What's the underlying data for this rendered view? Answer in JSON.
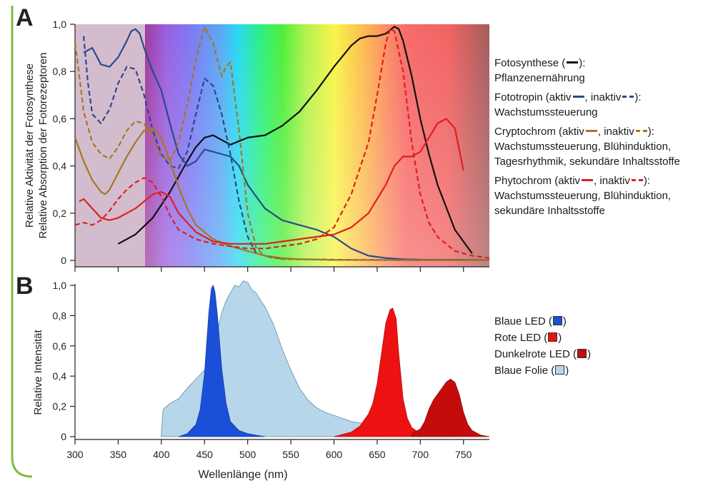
{
  "panels": {
    "A": {
      "letter": "A"
    },
    "B": {
      "letter": "B"
    }
  },
  "colors": {
    "frame_green": "#7dbd3a",
    "photosynthesis": "#111111",
    "phototropin": "#2a4a8a",
    "cryptochrome": "#a4781e",
    "phytochrome": "#e0201c",
    "blue_led": "#1a4fd8",
    "red_led": "#ee1111",
    "darkred_led": "#c40c0c",
    "blue_foil": "#b8d6ea"
  },
  "legend_a": [
    {
      "name": "Fotosynthese",
      "prefix": "Fotosynthese (",
      "suffix": "):",
      "desc": [
        "Pflanzenernährung"
      ],
      "color_key": "photosynthesis"
    },
    {
      "name": "Fototropin",
      "prefix": "Fototropin (aktiv",
      "mid": ", inaktiv",
      "suffix": "):",
      "desc": [
        "Wachstumssteuerung"
      ],
      "color_key": "phototropin"
    },
    {
      "name": "Cryptochrom",
      "prefix": "Cryptochrom (aktiv",
      "mid": ", inaktiv",
      "suffix": "):",
      "desc": [
        "Wachstumssteuerung, Blühinduktion,",
        "Tagesrhythmik, sekundäre Inhaltsstoffe"
      ],
      "color_key": "cryptochrome"
    },
    {
      "name": "Phytochrom",
      "prefix": "Phytochrom (aktiv",
      "mid": ", inaktiv",
      "suffix": "):",
      "desc": [
        "Wachstumssteuerung, Blühinduktion,",
        "sekundäre Inhaltsstoffe"
      ],
      "color_key": "phytochrome"
    }
  ],
  "legend_b": [
    {
      "label": "Blaue LED (",
      "suffix": ")",
      "color_key": "blue_led"
    },
    {
      "label": "Rote LED (",
      "suffix": ")",
      "color_key": "red_led"
    },
    {
      "label": "Dunkelrote LED (",
      "suffix": ")",
      "color_key": "darkred_led"
    },
    {
      "label": "Blaue Folie (",
      "suffix": ")",
      "color_key": "blue_foil"
    }
  ],
  "chart_data": [
    {
      "type": "line",
      "panel": "A",
      "ylabel": [
        "Relative Aktivität der Fotosynthese",
        "Relative Absorption der Fotorezeptoren"
      ],
      "xlim": [
        300,
        780
      ],
      "ylim": [
        0,
        1.0
      ],
      "yticks": [
        "0",
        "0,2",
        "0,4",
        "0,6",
        "0,8",
        "1,0"
      ],
      "ytick_values": [
        0,
        0.2,
        0.4,
        0.6,
        0.8,
        1.0
      ],
      "xticks": [
        300,
        350,
        400,
        450,
        500,
        550,
        600,
        650,
        700,
        750
      ],
      "series": [
        {
          "name": "Fotosynthese",
          "color_key": "photosynthesis",
          "dash": false,
          "x": [
            350,
            370,
            390,
            410,
            430,
            440,
            450,
            460,
            470,
            480,
            500,
            520,
            540,
            560,
            580,
            600,
            620,
            630,
            640,
            650,
            660,
            670,
            675,
            680,
            690,
            700,
            710,
            720,
            740,
            760
          ],
          "y": [
            0.07,
            0.11,
            0.18,
            0.29,
            0.42,
            0.48,
            0.52,
            0.53,
            0.51,
            0.49,
            0.52,
            0.53,
            0.57,
            0.63,
            0.72,
            0.82,
            0.91,
            0.94,
            0.95,
            0.95,
            0.96,
            0.99,
            0.98,
            0.93,
            0.78,
            0.6,
            0.45,
            0.32,
            0.13,
            0.03
          ]
        },
        {
          "name": "Fototropin (aktiv)",
          "color_key": "phototropin",
          "dash": false,
          "x": [
            310,
            320,
            330,
            340,
            350,
            360,
            365,
            370,
            375,
            380,
            390,
            400,
            410,
            420,
            430,
            440,
            450,
            460,
            470,
            480,
            490,
            500,
            520,
            540,
            560,
            580,
            600,
            620,
            640,
            660,
            680,
            700,
            780
          ],
          "y": [
            0.88,
            0.9,
            0.83,
            0.82,
            0.86,
            0.93,
            0.97,
            0.98,
            0.96,
            0.9,
            0.8,
            0.72,
            0.58,
            0.45,
            0.4,
            0.42,
            0.47,
            0.46,
            0.45,
            0.44,
            0.4,
            0.32,
            0.22,
            0.17,
            0.15,
            0.13,
            0.1,
            0.05,
            0.02,
            0.01,
            0.005,
            0.003,
            0.002
          ]
        },
        {
          "name": "Fototropin (inaktiv)",
          "color_key": "phototropin",
          "dash": true,
          "x": [
            310,
            315,
            320,
            330,
            340,
            350,
            360,
            370,
            380,
            390,
            400,
            410,
            420,
            430,
            440,
            450,
            460,
            470,
            480,
            490,
            500,
            510,
            530,
            560,
            600,
            650,
            700,
            780
          ],
          "y": [
            0.95,
            0.75,
            0.62,
            0.58,
            0.64,
            0.75,
            0.82,
            0.81,
            0.7,
            0.55,
            0.45,
            0.4,
            0.39,
            0.46,
            0.62,
            0.77,
            0.74,
            0.62,
            0.45,
            0.25,
            0.1,
            0.03,
            0.01,
            0.005,
            0.003,
            0.002,
            0.001,
            0.001
          ]
        },
        {
          "name": "Cryptochrom (aktiv)",
          "color_key": "cryptochrome",
          "dash": false,
          "x": [
            300,
            310,
            320,
            330,
            335,
            340,
            350,
            360,
            370,
            380,
            390,
            400,
            410,
            420,
            430,
            440,
            460,
            480,
            500,
            520,
            540,
            560,
            600,
            700,
            780
          ],
          "y": [
            0.52,
            0.42,
            0.34,
            0.29,
            0.28,
            0.3,
            0.37,
            0.44,
            0.5,
            0.55,
            0.56,
            0.52,
            0.42,
            0.31,
            0.22,
            0.15,
            0.09,
            0.06,
            0.04,
            0.02,
            0.01,
            0.005,
            0.002,
            0.001,
            0.001
          ]
        },
        {
          "name": "Cryptochrom (inaktiv)",
          "color_key": "cryptochrome",
          "dash": true,
          "x": [
            300,
            303,
            310,
            320,
            330,
            340,
            350,
            360,
            370,
            380,
            390,
            400,
            410,
            420,
            430,
            440,
            450,
            460,
            470,
            475,
            480,
            490,
            500,
            510,
            520,
            540,
            600,
            700,
            780
          ],
          "y": [
            0.92,
            0.84,
            0.63,
            0.5,
            0.45,
            0.43,
            0.48,
            0.55,
            0.59,
            0.58,
            0.52,
            0.44,
            0.42,
            0.5,
            0.66,
            0.85,
            0.99,
            0.92,
            0.78,
            0.82,
            0.84,
            0.55,
            0.2,
            0.05,
            0.02,
            0.005,
            0.002,
            0.001,
            0.001
          ]
        },
        {
          "name": "Phytochrom (aktiv)",
          "color_key": "phytochrome",
          "dash": false,
          "x": [
            305,
            310,
            320,
            330,
            340,
            350,
            360,
            370,
            380,
            390,
            400,
            410,
            420,
            440,
            460,
            480,
            500,
            520,
            540,
            560,
            580,
            600,
            620,
            640,
            660,
            670,
            680,
            690,
            700,
            710,
            720,
            730,
            740,
            750
          ],
          "y": [
            0.25,
            0.26,
            0.22,
            0.18,
            0.17,
            0.18,
            0.2,
            0.22,
            0.25,
            0.28,
            0.29,
            0.27,
            0.2,
            0.12,
            0.08,
            0.07,
            0.07,
            0.07,
            0.08,
            0.09,
            0.1,
            0.11,
            0.14,
            0.2,
            0.32,
            0.4,
            0.44,
            0.44,
            0.46,
            0.52,
            0.58,
            0.6,
            0.56,
            0.38
          ]
        },
        {
          "name": "Phytochrom (inaktiv)",
          "color_key": "phytochrome",
          "dash": true,
          "x": [
            300,
            310,
            320,
            330,
            340,
            350,
            360,
            370,
            380,
            390,
            400,
            410,
            420,
            440,
            460,
            480,
            500,
            520,
            540,
            560,
            580,
            600,
            620,
            640,
            650,
            660,
            665,
            670,
            680,
            690,
            700,
            710,
            720,
            740,
            760,
            780
          ],
          "y": [
            0.15,
            0.16,
            0.15,
            0.17,
            0.21,
            0.26,
            0.3,
            0.33,
            0.35,
            0.33,
            0.27,
            0.19,
            0.13,
            0.09,
            0.07,
            0.06,
            0.05,
            0.05,
            0.06,
            0.07,
            0.09,
            0.14,
            0.28,
            0.5,
            0.7,
            0.92,
            0.98,
            0.97,
            0.8,
            0.5,
            0.28,
            0.16,
            0.1,
            0.04,
            0.02,
            0.01
          ]
        }
      ]
    },
    {
      "type": "area",
      "panel": "B",
      "xlabel": "Wellenlänge (nm)",
      "ylabel": "Relative Intensität",
      "xlim": [
        300,
        780
      ],
      "ylim": [
        0,
        1.0
      ],
      "yticks": [
        "0",
        "0,2",
        "0,4",
        "0,6",
        "0,8",
        "1,0"
      ],
      "ytick_values": [
        0,
        0.2,
        0.4,
        0.6,
        0.8,
        1.0
      ],
      "xticks": [
        300,
        350,
        400,
        450,
        500,
        550,
        600,
        650,
        700,
        750
      ],
      "series": [
        {
          "name": "Blaue Folie",
          "color_key": "blue_foil",
          "x": [
            400,
            402,
            410,
            420,
            430,
            440,
            450,
            460,
            465,
            470,
            475,
            480,
            485,
            490,
            495,
            500,
            505,
            510,
            515,
            520,
            530,
            540,
            550,
            560,
            570,
            580,
            590,
            600,
            610,
            620,
            630,
            640,
            660,
            680,
            700,
            720,
            740
          ],
          "y": [
            0.02,
            0.18,
            0.22,
            0.25,
            0.32,
            0.38,
            0.44,
            0.54,
            0.7,
            0.82,
            0.9,
            0.95,
            1.0,
            0.99,
            1.03,
            1.02,
            0.97,
            0.95,
            0.9,
            0.86,
            0.74,
            0.58,
            0.44,
            0.32,
            0.24,
            0.19,
            0.16,
            0.14,
            0.12,
            0.1,
            0.09,
            0.08,
            0.06,
            0.05,
            0.03,
            0.01,
            0.0
          ]
        },
        {
          "name": "Blaue LED",
          "color_key": "blue_led",
          "x": [
            420,
            430,
            440,
            445,
            450,
            455,
            458,
            460,
            462,
            465,
            470,
            475,
            480,
            490,
            500,
            510,
            520
          ],
          "y": [
            0.0,
            0.02,
            0.08,
            0.18,
            0.42,
            0.82,
            0.98,
            1.0,
            0.96,
            0.8,
            0.45,
            0.22,
            0.1,
            0.04,
            0.02,
            0.01,
            0.0
          ]
        },
        {
          "name": "Rote LED",
          "color_key": "red_led",
          "x": [
            600,
            620,
            630,
            640,
            645,
            650,
            655,
            660,
            665,
            668,
            672,
            675,
            680,
            685,
            690,
            700
          ],
          "y": [
            0.0,
            0.03,
            0.07,
            0.15,
            0.22,
            0.35,
            0.55,
            0.75,
            0.84,
            0.85,
            0.78,
            0.55,
            0.25,
            0.12,
            0.06,
            0.02
          ]
        },
        {
          "name": "Dunkelrote LED",
          "color_key": "darkred_led",
          "x": [
            690,
            700,
            705,
            710,
            715,
            720,
            725,
            730,
            735,
            740,
            745,
            750,
            755,
            760,
            770,
            780
          ],
          "y": [
            0.02,
            0.05,
            0.1,
            0.18,
            0.24,
            0.28,
            0.32,
            0.36,
            0.38,
            0.36,
            0.28,
            0.16,
            0.08,
            0.04,
            0.01,
            0.0
          ]
        }
      ]
    }
  ]
}
